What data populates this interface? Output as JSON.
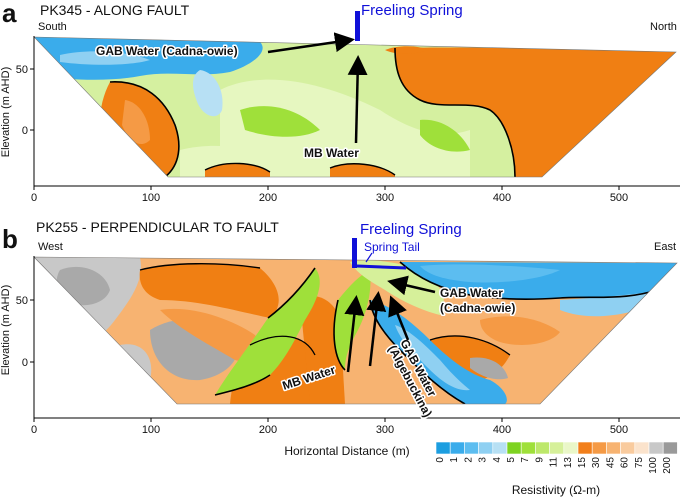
{
  "panels": [
    {
      "letter": "a",
      "title": "PK345 - ALONG FAULT",
      "left_dir": "South",
      "right_dir": "North",
      "ylabel": "Elevation (m AHD)",
      "spring": "Freeling Spring",
      "annotations": [
        "GAB Water (Cadna-owie)",
        "MB Water"
      ]
    },
    {
      "letter": "b",
      "title": "PK255 - PERPENDICULAR TO FAULT",
      "left_dir": "West",
      "right_dir": "East",
      "ylabel": "Elevation (m AHD)",
      "spring": "Freeling Spring",
      "spring_tail": "Spring Tail",
      "annotations": [
        "GAB Water",
        "(Cadna-owie)",
        "MB Water",
        "GAB Water",
        "(Algebuckina)"
      ]
    }
  ],
  "axes": {
    "xlabel": "Horizontal Distance (m)",
    "x_ticks": [
      "0",
      "100",
      "200",
      "300",
      "400",
      "500"
    ],
    "y_ticks": [
      "50",
      "0"
    ]
  },
  "legend": {
    "title": "Resistivity (Ω-m)",
    "labels": [
      "0",
      "1",
      "2",
      "3",
      "4",
      "5",
      "7",
      "9",
      "11",
      "13",
      "15",
      "30",
      "45",
      "60",
      "75",
      "100",
      "200"
    ],
    "colors": [
      "#1c9ee0",
      "#3aaceb",
      "#5cbdf0",
      "#8fd0f2",
      "#b7e0f4",
      "#7ed321",
      "#9fe03a",
      "#bde86a",
      "#d6f09a",
      "#eaf7c8",
      "#f27f1b",
      "#f59a45",
      "#f7b371",
      "#f9cb9e",
      "#fbe3cc",
      "#c8c8c8",
      "#9a9a9a"
    ]
  },
  "colors": {
    "spring_blue": "#1010d8",
    "orange": "#f07f13",
    "lime": "#9fe03a",
    "pale_green": "#e4f6b8",
    "cyan": "#3aaceb",
    "gray": "#a9a9a9"
  }
}
